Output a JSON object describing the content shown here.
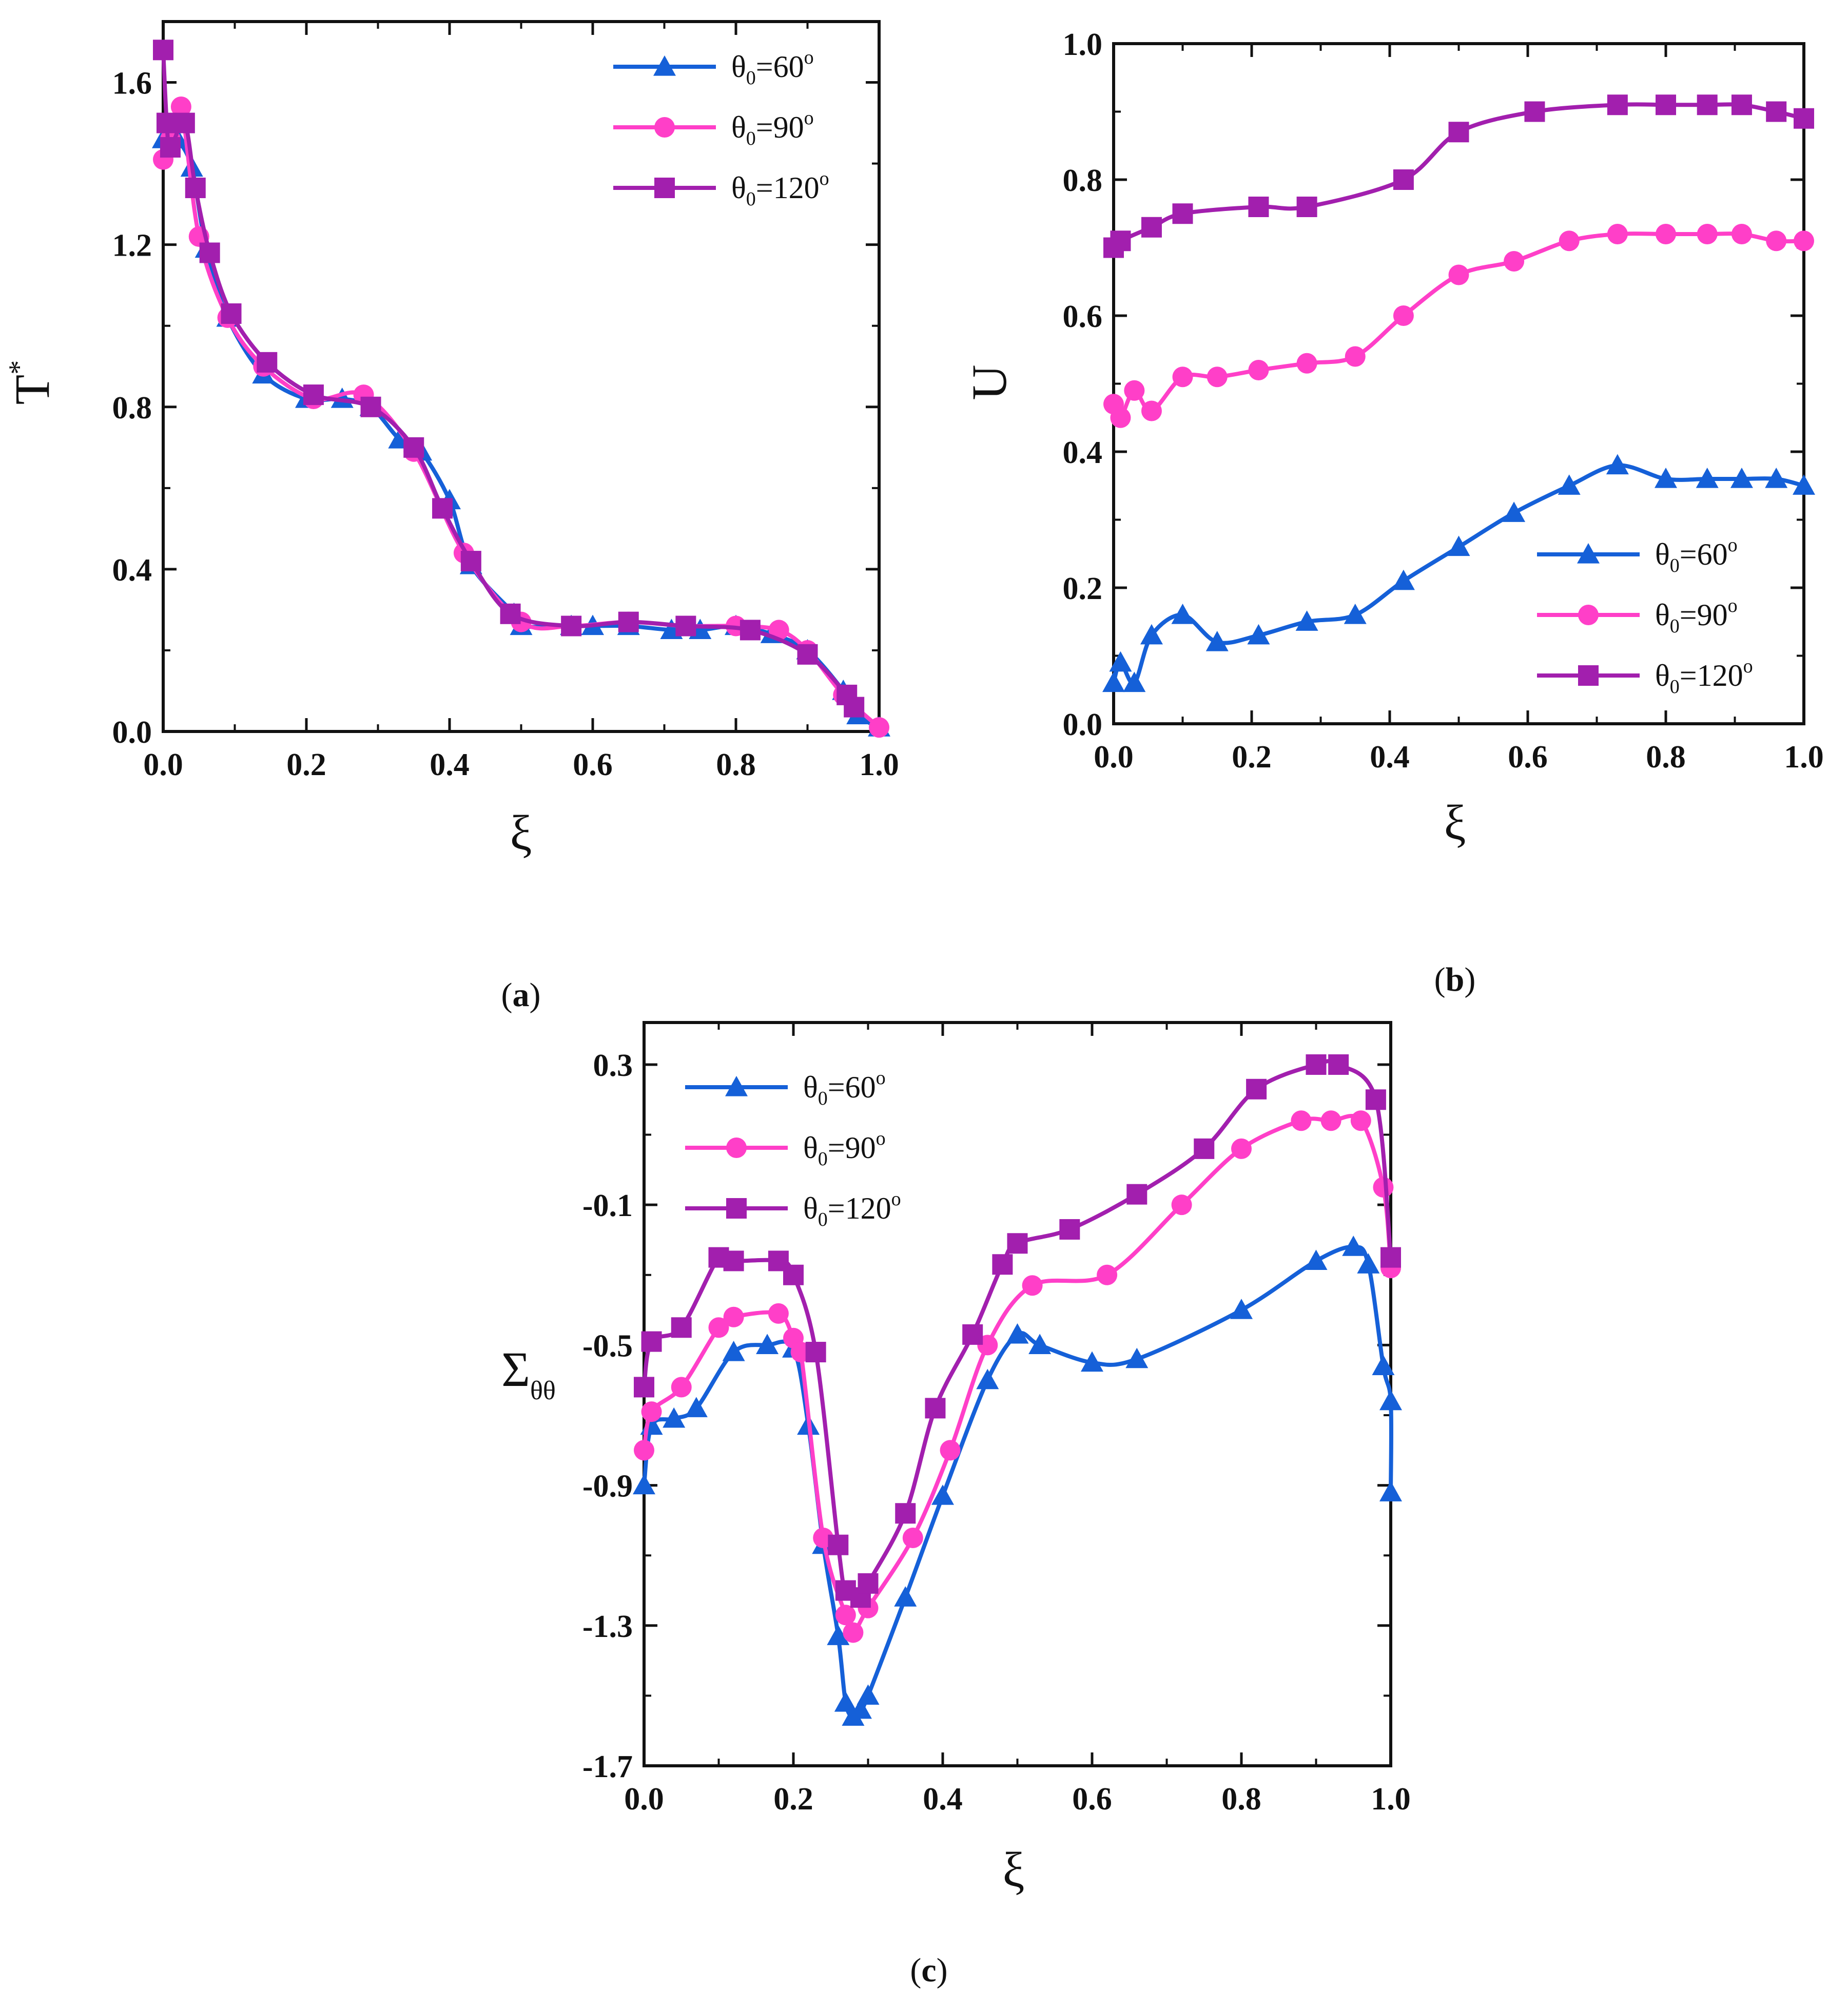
{
  "colors": {
    "theta60": "#1560d8",
    "theta90": "#ff3fc8",
    "theta120": "#a21fae"
  },
  "legend": {
    "symbol": "θ",
    "subscript": "0",
    "degree": "o",
    "entries": [
      {
        "key": "theta60",
        "name": "θ0=60o",
        "value": "=60"
      },
      {
        "key": "theta90",
        "name": "θ0=90o",
        "value": "=90"
      },
      {
        "key": "theta120",
        "name": "θ0=120o",
        "value": "=120"
      }
    ]
  },
  "chart_data": [
    {
      "panel": "a",
      "type": "line",
      "xlabel": "ξ",
      "ylabel": {
        "main": "T",
        "superscript": "*"
      },
      "xlim": [
        0,
        1
      ],
      "ylim": [
        0,
        1.75
      ],
      "xticks": [
        "0.0",
        "0.2",
        "0.4",
        "0.6",
        "0.8",
        "1.0"
      ],
      "yticks": [
        "0.0",
        "0.4",
        "0.8",
        "1.2",
        "1.6"
      ],
      "legend_position": "top-right",
      "panel_label": {
        "open": "(",
        "letter": "a",
        "close": ")"
      },
      "series": [
        {
          "name": "θ0=60o",
          "marker": "triangle",
          "x": [
            0.0,
            0.01,
            0.02,
            0.04,
            0.06,
            0.09,
            0.14,
            0.2,
            0.25,
            0.29,
            0.33,
            0.36,
            0.4,
            0.43,
            0.49,
            0.5,
            0.57,
            0.6,
            0.65,
            0.71,
            0.75,
            0.8,
            0.85,
            0.9,
            0.95,
            0.97,
            1.0
          ],
          "y": [
            1.46,
            1.48,
            1.46,
            1.39,
            1.19,
            1.02,
            0.88,
            0.82,
            0.82,
            0.8,
            0.72,
            0.69,
            0.57,
            0.41,
            0.29,
            0.26,
            0.26,
            0.26,
            0.26,
            0.25,
            0.25,
            0.26,
            0.24,
            0.2,
            0.1,
            0.04,
            0.01
          ]
        },
        {
          "name": "θ0=90o",
          "marker": "circle",
          "x": [
            0.0,
            0.01,
            0.025,
            0.05,
            0.09,
            0.14,
            0.21,
            0.28,
            0.35,
            0.42,
            0.5,
            0.57,
            0.65,
            0.73,
            0.8,
            0.86,
            0.9,
            0.95,
            1.0
          ],
          "y": [
            1.41,
            1.46,
            1.54,
            1.22,
            1.02,
            0.9,
            0.82,
            0.83,
            0.69,
            0.44,
            0.27,
            0.26,
            0.27,
            0.26,
            0.26,
            0.25,
            0.2,
            0.09,
            0.01
          ]
        },
        {
          "name": "θ0=120o",
          "marker": "square",
          "x": [
            0.0,
            0.005,
            0.01,
            0.03,
            0.045,
            0.065,
            0.095,
            0.145,
            0.21,
            0.29,
            0.35,
            0.39,
            0.43,
            0.485,
            0.57,
            0.65,
            0.73,
            0.82,
            0.9,
            0.955,
            0.965
          ],
          "y": [
            1.68,
            1.5,
            1.44,
            1.5,
            1.34,
            1.18,
            1.03,
            0.91,
            0.83,
            0.8,
            0.7,
            0.55,
            0.42,
            0.29,
            0.26,
            0.27,
            0.26,
            0.25,
            0.19,
            0.09,
            0.06
          ]
        }
      ]
    },
    {
      "panel": "b",
      "type": "line",
      "xlabel": "ξ",
      "ylabel": {
        "main": "U"
      },
      "xlim": [
        0,
        1
      ],
      "ylim": [
        0,
        1.0
      ],
      "xticks": [
        "0.0",
        "0.2",
        "0.4",
        "0.6",
        "0.8",
        "1.0"
      ],
      "yticks": [
        "0.0",
        "0.2",
        "0.4",
        "0.6",
        "0.8",
        "1.0"
      ],
      "legend_position": "bottom-right",
      "panel_label": {
        "open": "(",
        "letter": "b",
        "close": ")"
      },
      "series": [
        {
          "name": "θ0=60o",
          "marker": "triangle",
          "x": [
            0.0,
            0.01,
            0.03,
            0.055,
            0.1,
            0.15,
            0.21,
            0.28,
            0.35,
            0.42,
            0.5,
            0.58,
            0.66,
            0.73,
            0.8,
            0.86,
            0.91,
            0.96,
            1.0
          ],
          "y": [
            0.06,
            0.09,
            0.06,
            0.13,
            0.16,
            0.12,
            0.13,
            0.15,
            0.16,
            0.21,
            0.26,
            0.31,
            0.35,
            0.38,
            0.36,
            0.36,
            0.36,
            0.36,
            0.35
          ]
        },
        {
          "name": "θ0=90o",
          "marker": "circle",
          "x": [
            0.0,
            0.01,
            0.03,
            0.055,
            0.1,
            0.15,
            0.21,
            0.28,
            0.35,
            0.42,
            0.5,
            0.58,
            0.66,
            0.73,
            0.8,
            0.86,
            0.91,
            0.96,
            1.0
          ],
          "y": [
            0.47,
            0.45,
            0.49,
            0.46,
            0.51,
            0.51,
            0.52,
            0.53,
            0.54,
            0.6,
            0.66,
            0.68,
            0.71,
            0.72,
            0.72,
            0.72,
            0.72,
            0.71,
            0.71
          ]
        },
        {
          "name": "θ0=120o",
          "marker": "square",
          "x": [
            0.0,
            0.01,
            0.055,
            0.1,
            0.21,
            0.28,
            0.42,
            0.5,
            0.61,
            0.73,
            0.8,
            0.86,
            0.91,
            0.96,
            1.0
          ],
          "y": [
            0.7,
            0.71,
            0.73,
            0.75,
            0.76,
            0.76,
            0.8,
            0.87,
            0.9,
            0.91,
            0.91,
            0.91,
            0.91,
            0.9,
            0.89
          ]
        }
      ]
    },
    {
      "panel": "c",
      "type": "line",
      "xlabel": "ξ",
      "ylabel": {
        "main": "Σ",
        "subscript": "θθ"
      },
      "xlim": [
        0,
        1
      ],
      "ylim": [
        -1.7,
        0.42
      ],
      "xticks": [
        "0.0",
        "0.2",
        "0.4",
        "0.6",
        "0.8",
        "1.0"
      ],
      "yticks": [
        "-1.7",
        "-1.3",
        "-0.9",
        "-0.5",
        "-0.1",
        "0.3"
      ],
      "legend_position": "top-left",
      "panel_label": {
        "open": "(",
        "letter": "c",
        "close": ")"
      },
      "series": [
        {
          "name": "θ0=60o",
          "marker": "triangle",
          "x": [
            0.0,
            0.01,
            0.04,
            0.07,
            0.12,
            0.165,
            0.2,
            0.22,
            0.24,
            0.26,
            0.27,
            0.28,
            0.29,
            0.3,
            0.35,
            0.4,
            0.46,
            0.5,
            0.53,
            0.6,
            0.66,
            0.8,
            0.9,
            0.95,
            0.97,
            0.99,
            1.0,
            1.0
          ],
          "y": [
            -0.9,
            -0.73,
            -0.71,
            -0.68,
            -0.52,
            -0.5,
            -0.51,
            -0.73,
            -1.07,
            -1.33,
            -1.52,
            -1.56,
            -1.54,
            -1.5,
            -1.22,
            -0.93,
            -0.6,
            -0.47,
            -0.5,
            -0.55,
            -0.54,
            -0.4,
            -0.26,
            -0.22,
            -0.27,
            -0.56,
            -0.66,
            -0.92
          ]
        },
        {
          "name": "θ0=90o",
          "marker": "circle",
          "x": [
            0.0,
            0.01,
            0.05,
            0.1,
            0.12,
            0.18,
            0.2,
            0.21,
            0.24,
            0.27,
            0.28,
            0.3,
            0.36,
            0.41,
            0.46,
            0.52,
            0.62,
            0.72,
            0.8,
            0.88,
            0.92,
            0.96,
            0.99,
            1.0
          ],
          "y": [
            -0.8,
            -0.69,
            -0.62,
            -0.45,
            -0.42,
            -0.41,
            -0.48,
            -0.52,
            -1.05,
            -1.27,
            -1.32,
            -1.25,
            -1.05,
            -0.8,
            -0.5,
            -0.33,
            -0.3,
            -0.1,
            0.06,
            0.14,
            0.14,
            0.14,
            -0.05,
            -0.28
          ]
        },
        {
          "name": "θ0=120o",
          "marker": "square",
          "x": [
            0.0,
            0.01,
            0.05,
            0.1,
            0.12,
            0.18,
            0.2,
            0.23,
            0.26,
            0.27,
            0.29,
            0.3,
            0.35,
            0.39,
            0.44,
            0.48,
            0.5,
            0.57,
            0.66,
            0.75,
            0.82,
            0.9,
            0.93,
            0.98,
            1.0
          ],
          "y": [
            -0.62,
            -0.49,
            -0.45,
            -0.25,
            -0.26,
            -0.26,
            -0.3,
            -0.52,
            -1.07,
            -1.2,
            -1.22,
            -1.18,
            -0.98,
            -0.68,
            -0.47,
            -0.27,
            -0.21,
            -0.17,
            -0.07,
            0.06,
            0.23,
            0.3,
            0.3,
            0.2,
            -0.25
          ]
        }
      ]
    }
  ]
}
